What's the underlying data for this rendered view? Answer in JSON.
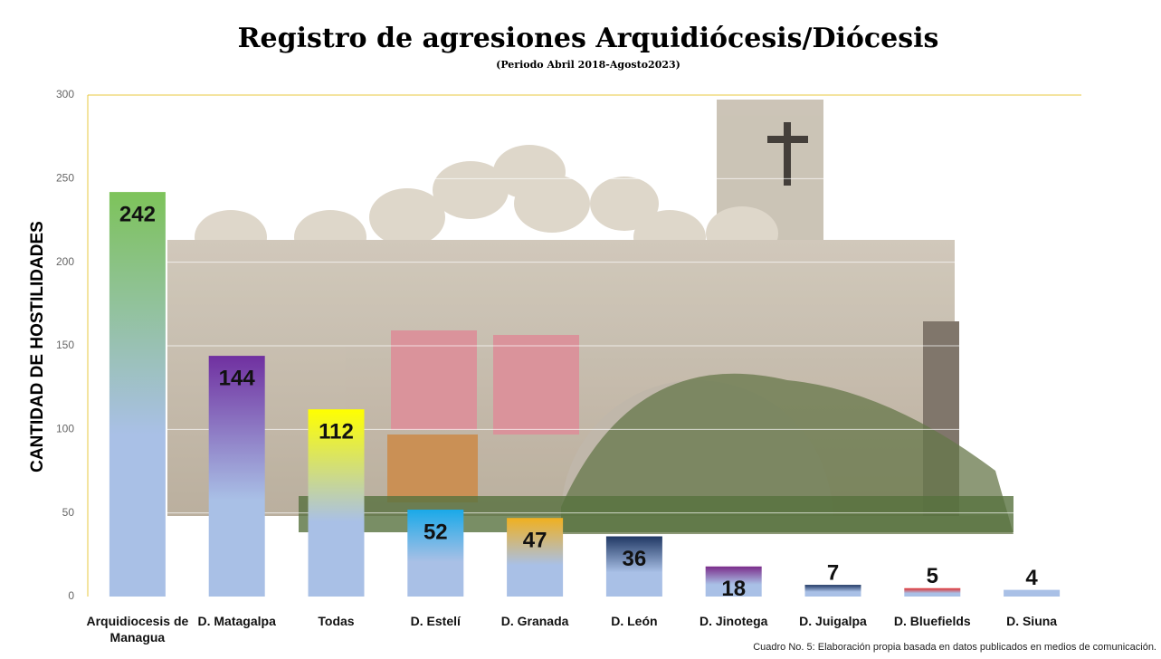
{
  "chart_data": {
    "type": "bar",
    "title": "Registro de agresiones Arquidiócesis/Diócesis",
    "subtitle": "(Periodo Abril 2018-Agosto2023)",
    "y_label": "CANTIDAD DE HOSTILIDADES",
    "note": "Cuadro No. 5: Elaboración propia basada en datos publicados en medios de comunicación.",
    "categories": [
      "Arquidiocesis de Managua",
      "D. Matagalpa",
      "Todas",
      "D. Estelí",
      "D. Granada",
      "D. León",
      "D. Jinotega",
      "D. Juigalpa",
      "D. Bluefields",
      "D. Siuna"
    ],
    "values": [
      242,
      144,
      112,
      52,
      47,
      36,
      18,
      7,
      5,
      4
    ],
    "colors": [
      "#7dc35a",
      "#7030a0",
      "#ffff00",
      "#1aa9e8",
      "#f0b020",
      "#203864",
      "#7b2c8a",
      "#203864",
      "#e03030",
      "#a9c0e6"
    ],
    "ylim": [
      0,
      300
    ],
    "yticks": [
      0,
      50,
      100,
      150,
      200,
      250,
      300
    ],
    "grid": true
  }
}
